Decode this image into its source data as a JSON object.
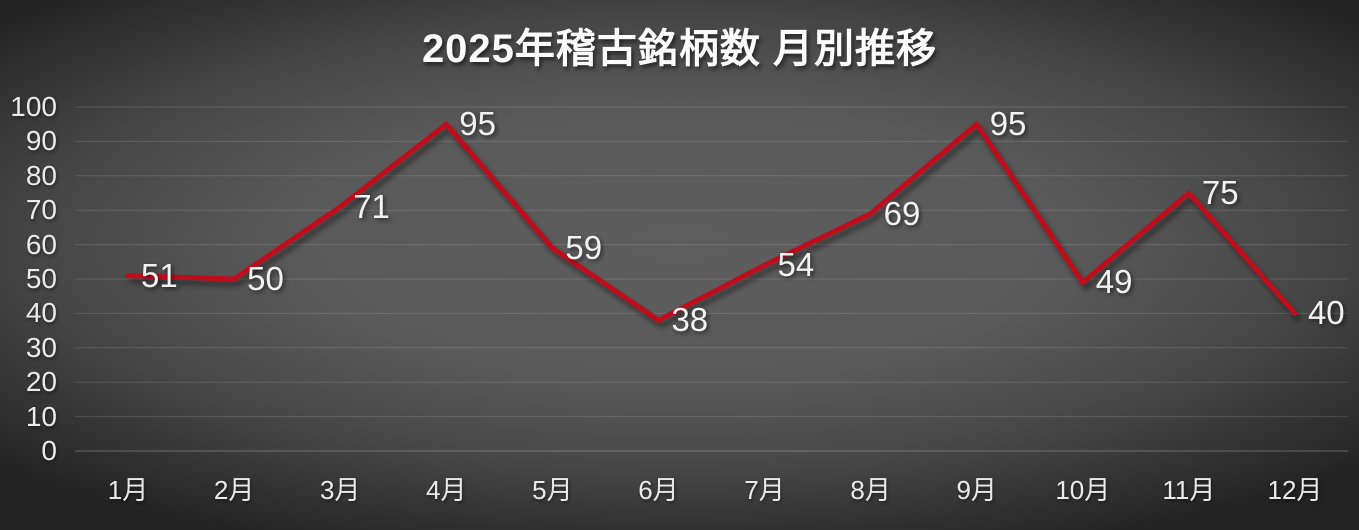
{
  "chart_data": {
    "type": "line",
    "title": "2025年稽古銘柄数 月別推移",
    "categories": [
      "1月",
      "2月",
      "3月",
      "4月",
      "5月",
      "6月",
      "7月",
      "8月",
      "9月",
      "10月",
      "11月",
      "12月"
    ],
    "values": [
      51,
      50,
      71,
      95,
      59,
      38,
      54,
      69,
      95,
      49,
      75,
      40
    ],
    "data_labels_shown": true,
    "xlabel": "",
    "ylabel": "",
    "ylim": [
      0,
      100
    ],
    "y_ticks": [
      0,
      10,
      20,
      30,
      40,
      50,
      60,
      70,
      80,
      90,
      100
    ],
    "grid": true,
    "legend": false,
    "colors": {
      "line": "#c00f1e",
      "data_label": "#f2f2f2",
      "axis_label": "#eaeaea",
      "gridline": "rgba(255,255,255,0.13)",
      "baseline": "rgba(255,255,255,0.28)",
      "background_center": "#5e5e5e",
      "background_edge": "#232323",
      "title_text": "#fbfbfb"
    }
  }
}
